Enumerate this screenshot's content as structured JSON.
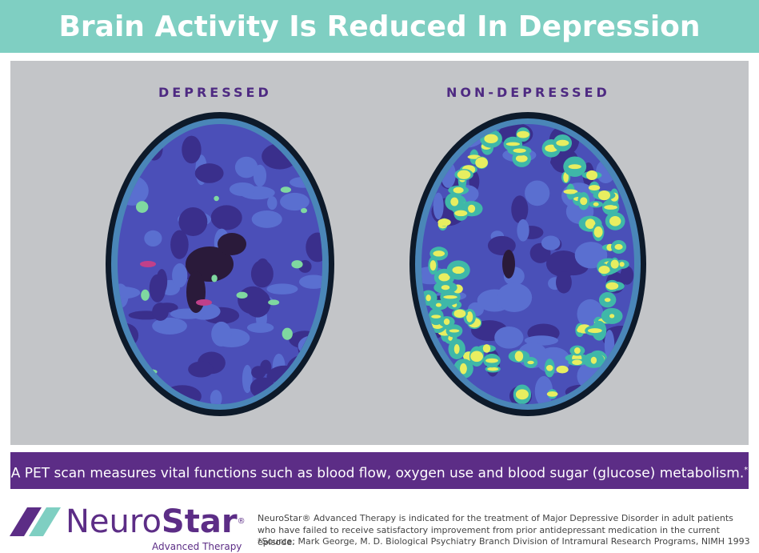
{
  "header": {
    "title": "Brain Activity Is Reduced In Depression"
  },
  "panels": [
    {
      "label": "DEPRESSED"
    },
    {
      "label": "NON-DEPRESSED"
    }
  ],
  "caption": {
    "text": "A PET scan measures vital functions such as blood flow, oxygen use and blood sugar (glucose) metabolism.",
    "mark": "*"
  },
  "logo": {
    "neuro": "Neuro",
    "star": "Star",
    "reg": "®",
    "tagline": "Advanced Therapy"
  },
  "footer": {
    "indication": "NeuroStar® Advanced Therapy is indicated for the treatment of Major Depressive Disorder in adult patients who have failed to receive satisfactory improvement from prior antidepressant medication in the current episode.",
    "source": "*Source: Mark George, M. D. Biological Psychiatry Branch Division of Intramural Research Programs, NIMH 1993"
  }
}
